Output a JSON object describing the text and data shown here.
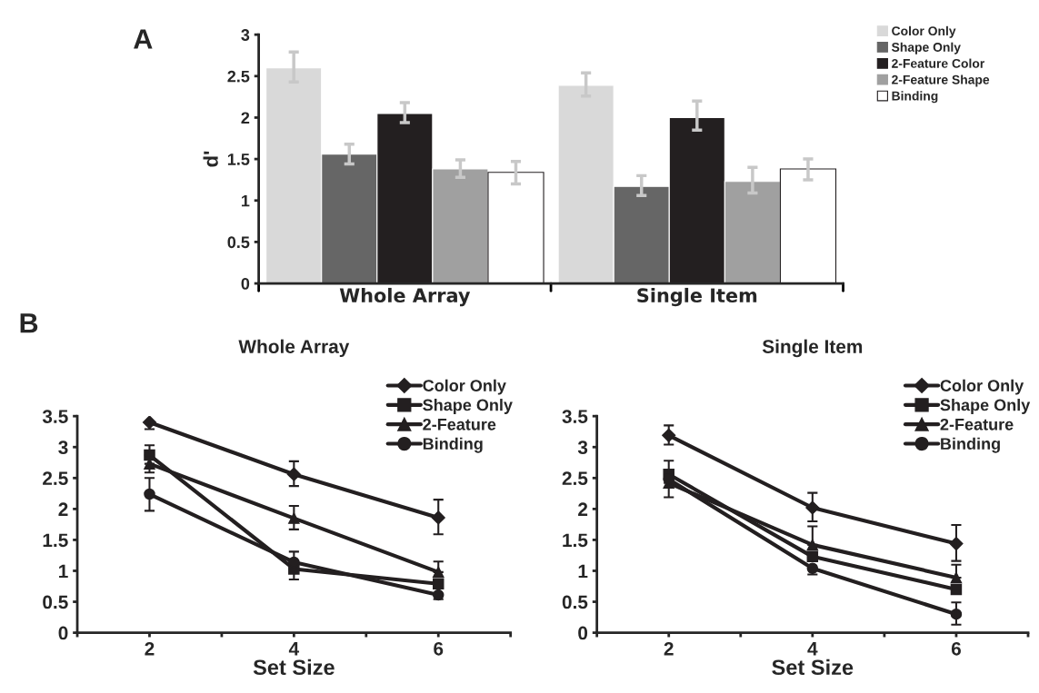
{
  "chart_data": [
    {
      "type": "bar",
      "ylabel": "d'",
      "categories": [
        "Whole Array",
        "Single Item"
      ],
      "ylim": [
        0,
        3
      ],
      "yticks": [
        0,
        0.5,
        1,
        1.5,
        2,
        2.5,
        3
      ],
      "grid": false,
      "legend": "top right",
      "annotations": [
        "A"
      ],
      "series": [
        {
          "name": "Color Only",
          "color": "#d9d9d9",
          "values": [
            2.6,
            2.39
          ],
          "errors": [
            [
              2.43,
              2.79
            ],
            [
              2.26,
              2.54
            ]
          ]
        },
        {
          "name": "Shape Only",
          "color": "#666666",
          "values": [
            1.56,
            1.17
          ],
          "errors": [
            [
              1.44,
              1.68
            ],
            [
              1.06,
              1.3
            ]
          ]
        },
        {
          "name": "2-Feature Color",
          "color": "#231f20",
          "values": [
            2.05,
            2.0
          ],
          "errors": [
            [
              1.94,
              2.18
            ],
            [
              1.85,
              2.2
            ]
          ]
        },
        {
          "name": "2-Feature Shape",
          "color": "#a0a0a0",
          "values": [
            1.38,
            1.23
          ],
          "errors": [
            [
              1.28,
              1.49
            ],
            [
              1.09,
              1.4
            ]
          ]
        },
        {
          "name": "Binding",
          "color": "#ffffff",
          "values": [
            1.34,
            1.38
          ],
          "errors": [
            [
              1.2,
              1.47
            ],
            [
              1.25,
              1.5
            ]
          ]
        }
      ]
    },
    {
      "type": "line",
      "title": "Whole Array",
      "xlabel": "Set Size",
      "x": [
        2,
        4,
        6
      ],
      "xlim": [
        1,
        7
      ],
      "xticks": [
        {
          "value": 1,
          "label": null
        },
        2,
        {
          "value": 3,
          "label": null
        },
        4,
        {
          "value": 5,
          "label": null
        },
        6,
        {
          "value": 7,
          "label": null
        }
      ],
      "ylim": [
        0,
        3.5
      ],
      "yticks": [
        0,
        0.5,
        1,
        1.5,
        2,
        2.5,
        3,
        3.5
      ],
      "grid": false,
      "legend": "top right",
      "annotations": [
        "B"
      ],
      "series": [
        {
          "name": "Color Only",
          "color": "#231f20",
          "marker": "diamond",
          "values": [
            3.4,
            2.56,
            1.86
          ],
          "errors": [
            [
              3.29,
              3.53
            ],
            [
              2.37,
              2.77
            ],
            [
              1.59,
              2.15
            ]
          ]
        },
        {
          "name": "Shape Only",
          "color": "#231f20",
          "marker": "square",
          "values": [
            2.87,
            1.03,
            0.79
          ],
          "errors": [
            [
              2.87,
              3.03
            ],
            [
              0.86,
              1.03
            ],
            null
          ]
        },
        {
          "name": "2-Feature",
          "color": "#231f20",
          "marker": "triangle",
          "values": [
            2.73,
            1.85,
            0.98
          ],
          "errors": [
            [
              2.59,
              2.73
            ],
            [
              1.67,
              2.05
            ],
            [
              0.98,
              1.15
            ]
          ]
        },
        {
          "name": "Binding",
          "color": "#231f20",
          "marker": "circle",
          "values": [
            2.24,
            1.14,
            0.61
          ],
          "errors": [
            [
              1.97,
              2.5
            ],
            [
              1.14,
              1.31
            ],
            [
              0.54,
              0.61
            ]
          ]
        }
      ]
    },
    {
      "type": "line",
      "title": "Single Item",
      "xlabel": "Set Size",
      "x": [
        2,
        4,
        6
      ],
      "xlim": [
        1,
        7
      ],
      "xticks": [
        {
          "value": 1,
          "label": null
        },
        2,
        {
          "value": 3,
          "label": null
        },
        4,
        {
          "value": 5,
          "label": null
        },
        6,
        {
          "value": 7,
          "label": null
        }
      ],
      "ylim": [
        0,
        3.5
      ],
      "yticks": [
        0,
        0.5,
        1,
        1.5,
        2,
        2.5,
        3,
        3.5
      ],
      "grid": false,
      "legend": "top right",
      "series": [
        {
          "name": "Color Only",
          "color": "#231f20",
          "marker": "diamond",
          "values": [
            3.19,
            2.02,
            1.44
          ],
          "errors": [
            [
              3.04,
              3.35
            ],
            [
              1.8,
              2.26
            ],
            [
              1.16,
              1.74
            ]
          ]
        },
        {
          "name": "Shape Only",
          "color": "#231f20",
          "marker": "square",
          "values": [
            2.56,
            1.23,
            0.7
          ],
          "errors": [
            [
              2.56,
              2.78
            ],
            null,
            null
          ]
        },
        {
          "name": "2-Feature",
          "color": "#231f20",
          "marker": "triangle",
          "values": [
            2.42,
            1.42,
            0.89
          ],
          "errors": [
            [
              2.19,
              2.42
            ],
            [
              1.42,
              1.72
            ],
            [
              0.89,
              1.1
            ]
          ]
        },
        {
          "name": "Binding",
          "color": "#231f20",
          "marker": "circle",
          "values": [
            2.48,
            1.04,
            0.3
          ],
          "errors": [
            null,
            [
              0.94,
              1.04
            ],
            [
              0.13,
              0.49
            ]
          ]
        }
      ]
    }
  ]
}
